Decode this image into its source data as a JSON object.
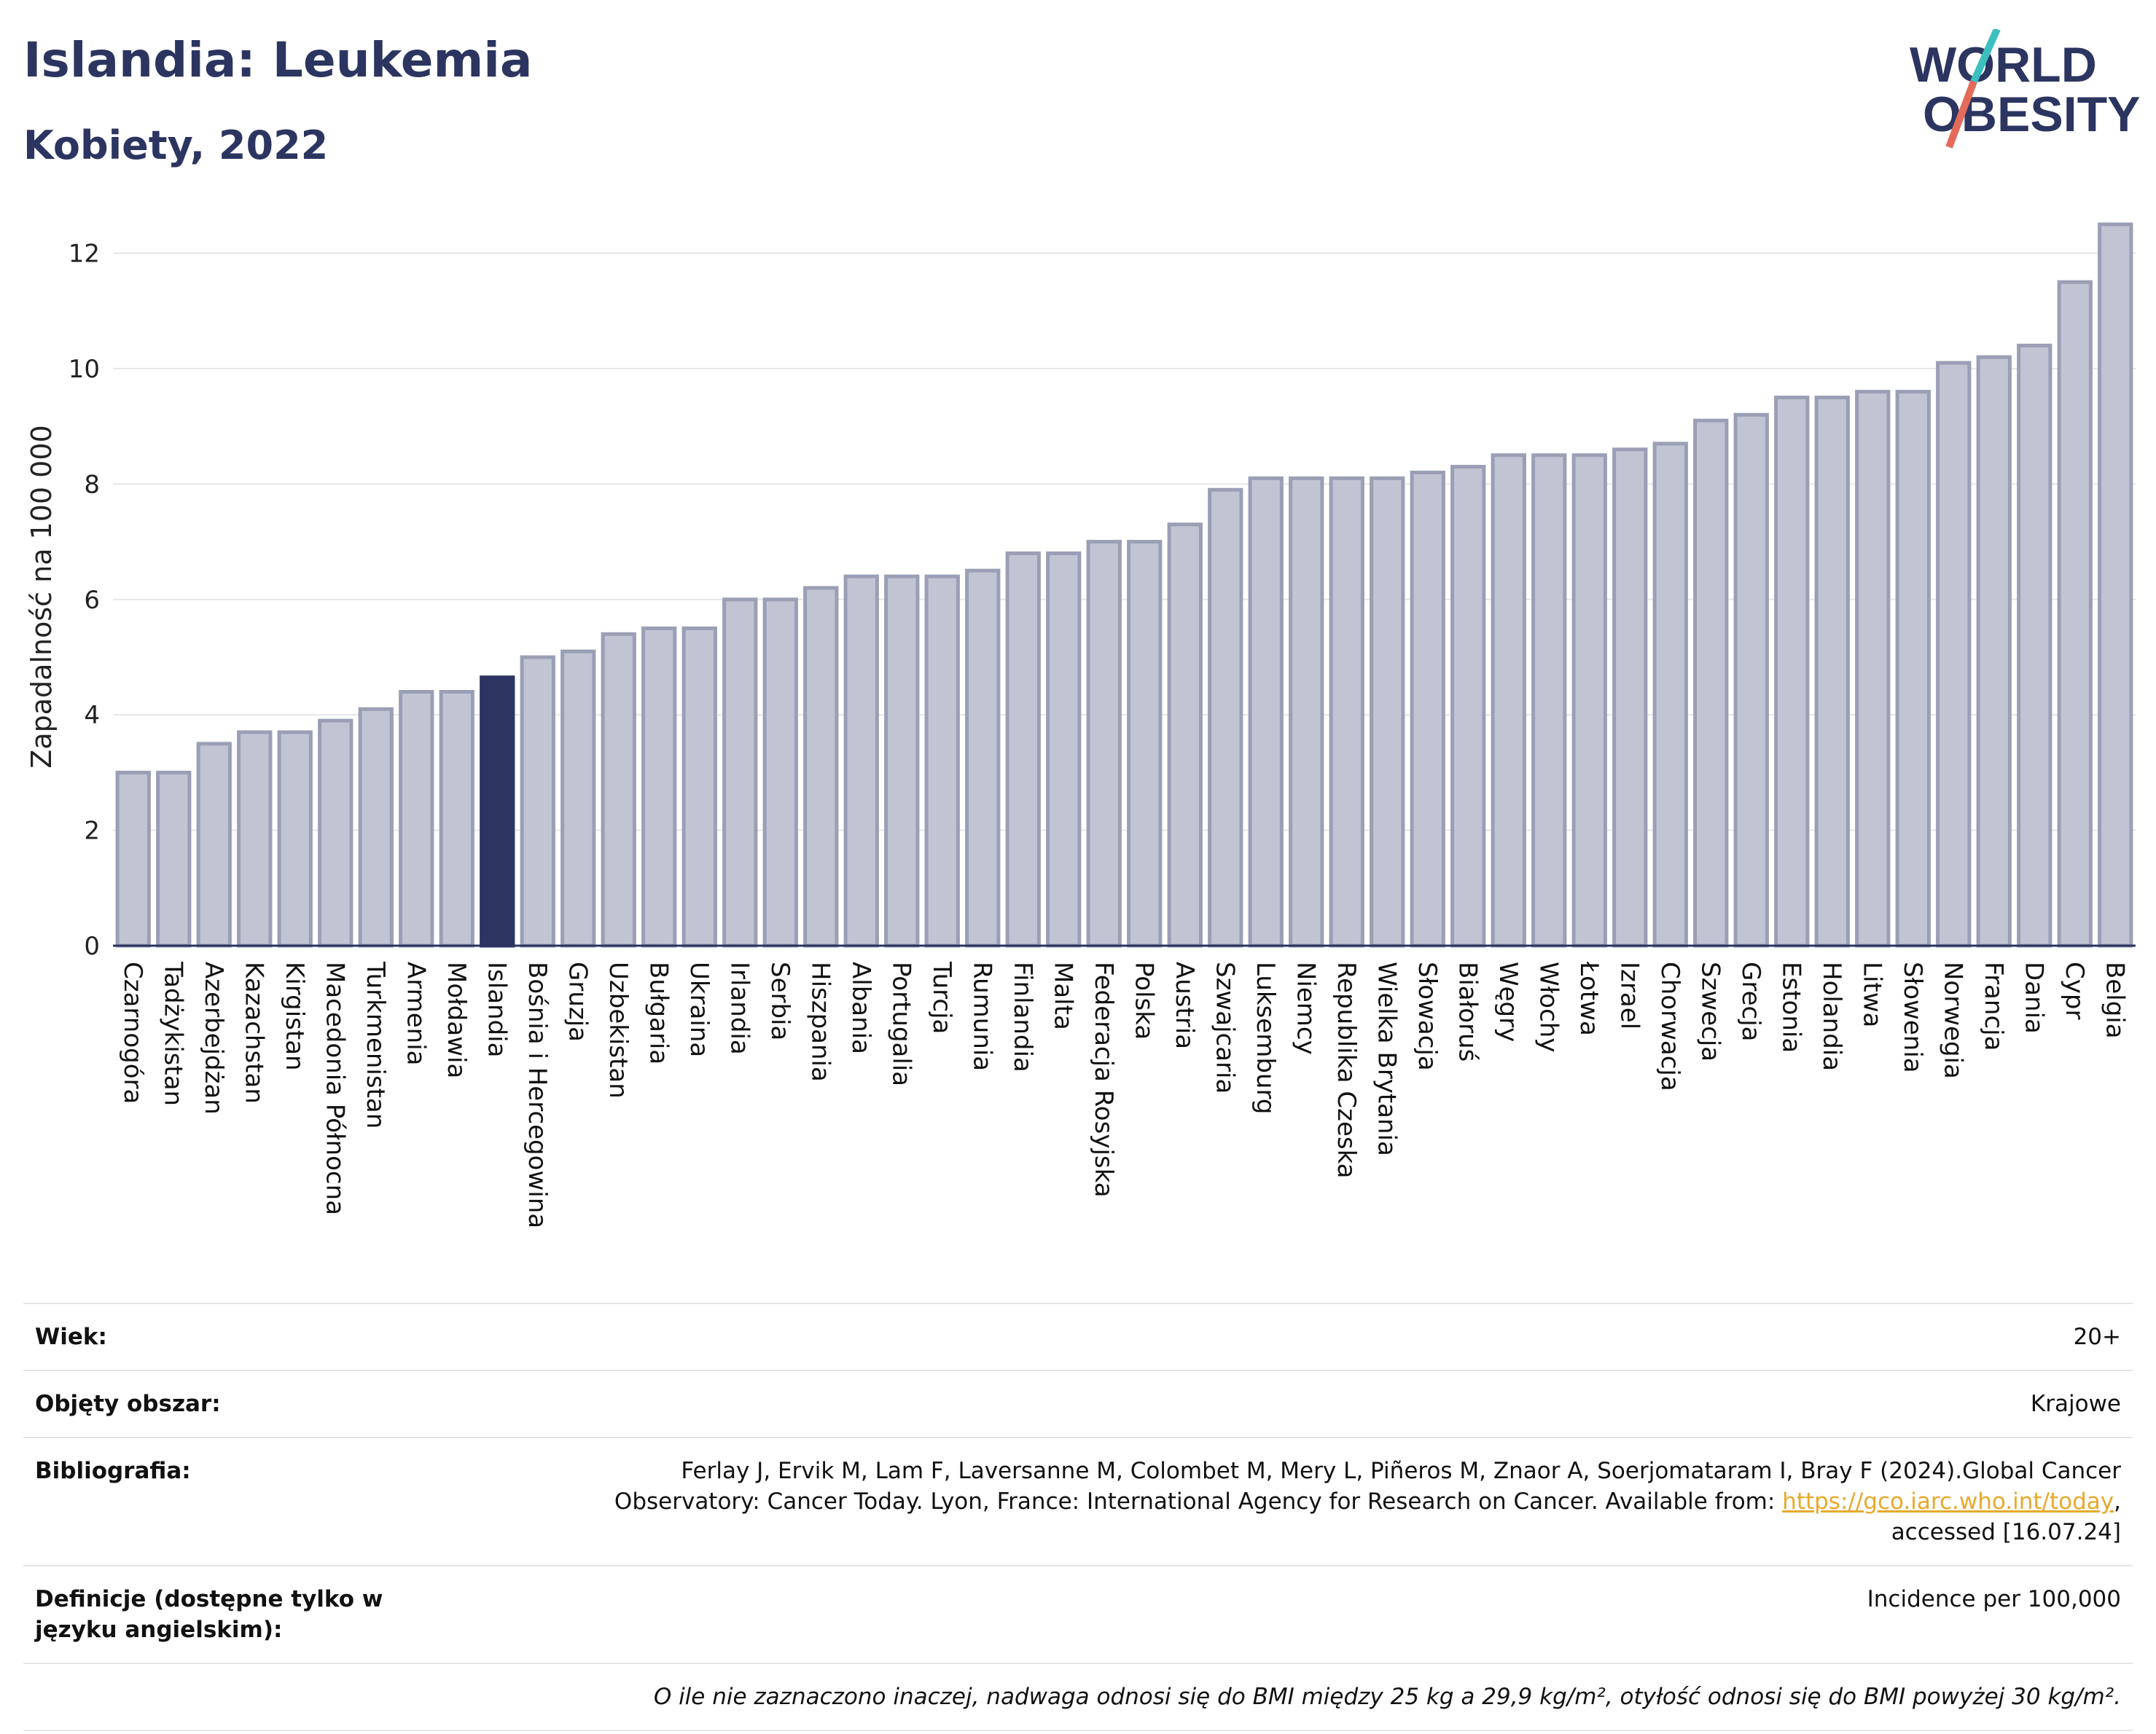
{
  "header": {
    "title": "Islandia: Leukemia",
    "subtitle": "Kobiety, 2022",
    "logo_line1": "WORLD",
    "logo_line2": "OBESITY"
  },
  "colors": {
    "bar": "#c1c4d3",
    "bar_stroke": "#9a9fb5",
    "highlight": "#2b3560",
    "logo_accent1": "#3bbfbf",
    "logo_accent2": "#e46a5a"
  },
  "chart_data": {
    "type": "bar",
    "ylabel": "Zapadalność na 100 000",
    "ylim": [
      0,
      12.6
    ],
    "yticks": [
      0,
      2,
      4,
      6,
      8,
      10,
      12
    ],
    "grid": true,
    "highlight": "Islandia",
    "categories": [
      "Czarnogóra",
      "Tadżykistan",
      "Azerbejdżan",
      "Kazachstan",
      "Kirgistan",
      "Macedonia Północna",
      "Turkmenistan",
      "Armenia",
      "Mołdawia",
      "Islandia",
      "Bośnia i Hercegowina",
      "Gruzja",
      "Uzbekistan",
      "Bułgaria",
      "Ukraina",
      "Irlandia",
      "Serbia",
      "Hiszpania",
      "Albania",
      "Portugalia",
      "Turcja",
      "Rumunia",
      "Finlandia",
      "Malta",
      "Federacja Rosyjska",
      "Polska",
      "Austria",
      "Szwajcaria",
      "Luksemburg",
      "Niemcy",
      "Republika Czeska",
      "Wielka Brytania",
      "Słowacja",
      "Białoruś",
      "Węgry",
      "Włochy",
      "Łotwa",
      "Izrael",
      "Chorwacja",
      "Szwecja",
      "Grecja",
      "Estonia",
      "Holandia",
      "Litwa",
      "Słowenia",
      "Norwegia",
      "Francja",
      "Dania",
      "Cypr",
      "Belgia"
    ],
    "values": [
      3.0,
      3.0,
      3.5,
      3.7,
      3.7,
      3.9,
      4.1,
      4.4,
      4.4,
      4.65,
      5.0,
      5.1,
      5.4,
      5.5,
      5.5,
      6.0,
      6.0,
      6.2,
      6.4,
      6.4,
      6.4,
      6.5,
      6.8,
      6.8,
      7.0,
      7.0,
      7.3,
      7.9,
      8.1,
      8.1,
      8.1,
      8.1,
      8.2,
      8.3,
      8.5,
      8.5,
      8.5,
      8.6,
      8.7,
      9.1,
      9.2,
      9.5,
      9.5,
      9.6,
      9.6,
      10.1,
      10.2,
      10.4,
      11.5,
      12.5
    ]
  },
  "info": {
    "age_label": "Wiek:",
    "age_value": "20+",
    "area_label": "Objęty obszar:",
    "area_value": "Krajowe",
    "bib_label": "Bibliografia:",
    "bib_line1": "Ferlay J, Ervik M, Lam F, Laversanne M, Colombet M, Mery L, Piñeros M, Znaor A, Soerjomataram I, Bray F (2024).Global Cancer",
    "bib_line2": "Observatory: Cancer Today. Lyon, France: International Agency for Research on Cancer. Available from: ",
    "bib_link": "https://gco.iarc.who.int/today",
    "bib_line2_end": ",",
    "bib_line3": "accessed [16.07.24]",
    "def_label": "Definicje (dostępne tylko w języku angielskim):",
    "def_value": "Incidence per 100,000",
    "note": "O ile nie zaznaczono inaczej, nadwaga odnosi się do BMI między 25 kg a 29,9 kg/m², otyłość odnosi się do BMI powyżej 30 kg/m²."
  }
}
